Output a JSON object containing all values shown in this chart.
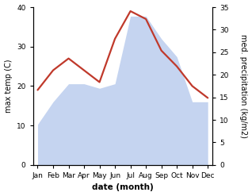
{
  "months": [
    "Jan",
    "Feb",
    "Mar",
    "Apr",
    "May",
    "Jun",
    "Jul",
    "Aug",
    "Sep",
    "Oct",
    "Nov",
    "Dec"
  ],
  "x": [
    0,
    1,
    2,
    3,
    4,
    5,
    6,
    7,
    8,
    9,
    10,
    11
  ],
  "temperature": [
    19,
    24,
    27,
    24,
    21,
    32,
    39,
    37,
    29,
    25,
    20,
    17
  ],
  "precipitation": [
    9,
    14,
    18,
    18,
    17,
    18,
    33,
    33,
    28,
    24,
    14,
    14
  ],
  "temp_color": "#c0392b",
  "precip_fill_color": "#c5d4f0",
  "bg_color": "#ffffff",
  "left_ylim": [
    0,
    40
  ],
  "right_ylim": [
    0,
    35
  ],
  "left_yticks": [
    0,
    10,
    20,
    30,
    40
  ],
  "right_yticks": [
    0,
    5,
    10,
    15,
    20,
    25,
    30,
    35
  ],
  "ylabel_left": "max temp (C)",
  "ylabel_right": "med. precipitation (kg/m2)",
  "xlabel": "date (month)",
  "label_fontsize": 7,
  "tick_fontsize": 6.5,
  "xlabel_fontsize": 7.5,
  "line_width": 1.6
}
